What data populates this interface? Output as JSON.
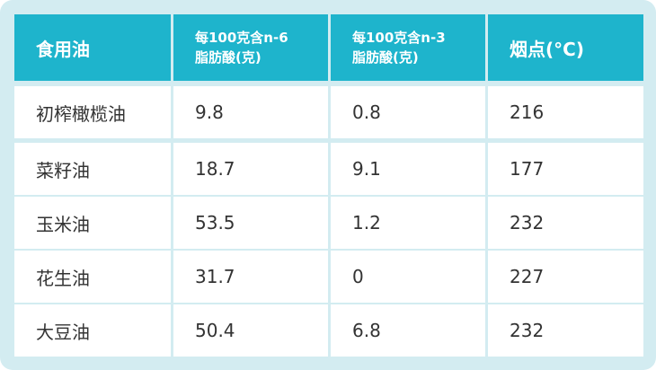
{
  "table": {
    "header": [
      "食用油",
      [
        "每100克含n-6",
        "脂肪酸(克)"
      ],
      [
        "每100克含n-3",
        "脂肪酸(克)"
      ],
      "烟点(°C)"
    ],
    "rows": [
      [
        "初榨橄榄油",
        "9.8",
        "0.8",
        "216"
      ],
      [
        "菜籽油",
        "18.7",
        "9.1",
        "177"
      ],
      [
        "玉米油",
        "53.5",
        "1.2",
        "232"
      ],
      [
        "花生油",
        "31.7",
        "0",
        "227"
      ],
      [
        "大豆油",
        "50.4",
        "6.8",
        "232"
      ]
    ]
  }
}
